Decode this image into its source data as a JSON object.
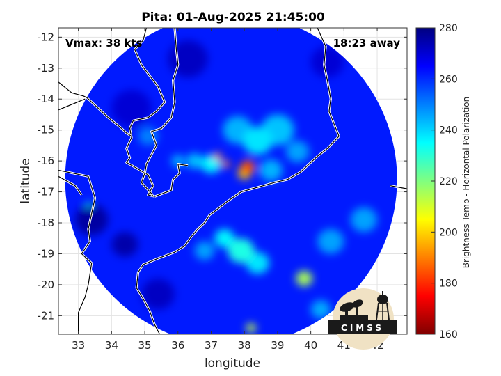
{
  "chart_data": {
    "type": "heatmap",
    "title": "Pita: 01-Aug-2025 21:45:00",
    "xlabel": "longitude",
    "ylabel": "latitude",
    "xlim": [
      32.4,
      42.9
    ],
    "ylim": [
      -21.6,
      -11.7
    ],
    "xticks": [
      33,
      34,
      35,
      36,
      37,
      38,
      39,
      40,
      41,
      42
    ],
    "yticks": [
      -12,
      -13,
      -14,
      -15,
      -16,
      -17,
      -18,
      -19,
      -20,
      -21
    ],
    "grid": true,
    "swath_center": [
      37.6,
      -16.6
    ],
    "swath_radius_deg": 5.0,
    "annotations": {
      "vmax": "Vmax: 38 kts",
      "away": "18:23 away"
    },
    "colorbar": {
      "label": "Brightness Temp - Horizontal Polarization",
      "min": 160,
      "max": 280,
      "ticks": [
        160,
        180,
        200,
        220,
        240,
        260,
        280
      ],
      "colormap": "jet"
    },
    "background_tb": 262,
    "features": [
      {
        "lon": 38.1,
        "lat": -16.2,
        "tb": 185,
        "spread": 0.22
      },
      {
        "lon": 38.0,
        "lat": -16.4,
        "tb": 198,
        "spread": 0.2
      },
      {
        "lon": 37.2,
        "lat": -15.85,
        "tb": 190,
        "spread": 0.12
      },
      {
        "lon": 37.45,
        "lat": -16.1,
        "tb": 188,
        "spread": 0.12
      },
      {
        "lon": 38.4,
        "lat": -15.35,
        "tb": 238,
        "spread": 0.45
      },
      {
        "lon": 39.0,
        "lat": -15.0,
        "tb": 242,
        "spread": 0.5
      },
      {
        "lon": 37.8,
        "lat": -15.0,
        "tb": 244,
        "spread": 0.45
      },
      {
        "lon": 37.0,
        "lat": -16.1,
        "tb": 236,
        "spread": 0.3
      },
      {
        "lon": 36.5,
        "lat": -16.0,
        "tb": 242,
        "spread": 0.25
      },
      {
        "lon": 36.0,
        "lat": -16.0,
        "tb": 244,
        "spread": 0.2
      },
      {
        "lon": 38.8,
        "lat": -16.3,
        "tb": 244,
        "spread": 0.35
      },
      {
        "lon": 39.6,
        "lat": -15.7,
        "tb": 246,
        "spread": 0.35
      },
      {
        "lon": 37.9,
        "lat": -18.9,
        "tb": 232,
        "spread": 0.4
      },
      {
        "lon": 37.4,
        "lat": -18.5,
        "tb": 236,
        "spread": 0.3
      },
      {
        "lon": 38.4,
        "lat": -19.3,
        "tb": 238,
        "spread": 0.35
      },
      {
        "lon": 39.8,
        "lat": -19.8,
        "tb": 215,
        "spread": 0.25
      },
      {
        "lon": 38.2,
        "lat": -21.4,
        "tb": 212,
        "spread": 0.15
      },
      {
        "lon": 40.6,
        "lat": -18.6,
        "tb": 246,
        "spread": 0.4
      },
      {
        "lon": 41.6,
        "lat": -17.9,
        "tb": 246,
        "spread": 0.4
      },
      {
        "lon": 40.3,
        "lat": -20.8,
        "tb": 245,
        "spread": 0.3
      },
      {
        "lon": 36.8,
        "lat": -18.9,
        "tb": 246,
        "spread": 0.3
      },
      {
        "lon": 35.1,
        "lat": -15.2,
        "tb": 250,
        "spread": 0.3
      },
      {
        "lon": 33.4,
        "lat": -17.9,
        "tb": 276,
        "spread": 0.5
      },
      {
        "lon": 34.4,
        "lat": -18.7,
        "tb": 275,
        "spread": 0.4
      },
      {
        "lon": 35.4,
        "lat": -20.3,
        "tb": 272,
        "spread": 0.5
      },
      {
        "lon": 36.3,
        "lat": -12.7,
        "tb": 272,
        "spread": 0.6
      },
      {
        "lon": 34.6,
        "lat": -14.3,
        "tb": 270,
        "spread": 0.6
      },
      {
        "lon": 40.5,
        "lat": -12.8,
        "tb": 270,
        "spread": 0.5
      },
      {
        "lon": 33.3,
        "lat": -17.4,
        "tb": 234,
        "spread": 0.08
      }
    ],
    "coastlines": [
      [
        [
          35.05,
          -11.7
        ],
        [
          34.95,
          -12.1
        ],
        [
          34.7,
          -12.4
        ],
        [
          34.9,
          -12.9
        ],
        [
          35.4,
          -13.6
        ],
        [
          35.6,
          -14.1
        ],
        [
          35.35,
          -14.4
        ],
        [
          35.1,
          -14.6
        ],
        [
          34.65,
          -14.7
        ],
        [
          34.55,
          -14.95
        ],
        [
          34.6,
          -15.25
        ],
        [
          34.45,
          -15.6
        ],
        [
          34.55,
          -15.9
        ],
        [
          34.45,
          -16.05
        ],
        [
          34.7,
          -16.2
        ],
        [
          35.1,
          -16.45
        ],
        [
          35.25,
          -16.8
        ],
        [
          35.1,
          -17.1
        ],
        [
          35.3,
          -17.15
        ]
      ],
      [
        [
          35.9,
          -11.7
        ],
        [
          35.95,
          -12.4
        ],
        [
          36.0,
          -12.9
        ],
        [
          35.85,
          -13.4
        ],
        [
          35.9,
          -14.1
        ],
        [
          35.8,
          -14.6
        ],
        [
          35.5,
          -14.95
        ],
        [
          35.2,
          -15.05
        ],
        [
          35.35,
          -15.5
        ],
        [
          35.05,
          -16.1
        ],
        [
          35.0,
          -16.4
        ],
        [
          34.9,
          -16.7
        ],
        [
          35.2,
          -17.05
        ],
        [
          35.25,
          -17.15
        ]
      ],
      [
        [
          35.3,
          -17.15
        ],
        [
          35.8,
          -16.95
        ],
        [
          35.85,
          -16.6
        ],
        [
          36.05,
          -16.4
        ],
        [
          36.0,
          -16.1
        ],
        [
          36.3,
          -16.15
        ]
      ],
      [
        [
          32.4,
          -13.45
        ],
        [
          32.8,
          -13.8
        ],
        [
          33.15,
          -13.9
        ],
        [
          33.25,
          -13.95
        ],
        [
          33.9,
          -14.6
        ],
        [
          34.25,
          -14.9
        ],
        [
          34.45,
          -15.1
        ],
        [
          34.6,
          -15.2
        ]
      ],
      [
        [
          32.4,
          -14.35
        ],
        [
          33.2,
          -14.0
        ]
      ],
      [
        [
          32.4,
          -16.3
        ],
        [
          33.3,
          -16.5
        ],
        [
          33.5,
          -17.2
        ],
        [
          33.3,
          -18.2
        ],
        [
          33.35,
          -18.6
        ],
        [
          33.1,
          -19.0
        ],
        [
          33.4,
          -19.3
        ],
        [
          33.3,
          -20.0
        ],
        [
          33.2,
          -20.4
        ],
        [
          33.0,
          -20.9
        ],
        [
          33.0,
          -21.3
        ],
        [
          33.0,
          -21.6
        ]
      ],
      [
        [
          32.4,
          -16.5
        ],
        [
          32.9,
          -16.8
        ],
        [
          33.1,
          -17.1
        ]
      ],
      [
        [
          40.2,
          -11.7
        ],
        [
          40.45,
          -12.3
        ],
        [
          40.4,
          -12.9
        ],
        [
          40.5,
          -13.4
        ],
        [
          40.6,
          -14.0
        ],
        [
          40.55,
          -14.4
        ],
        [
          40.7,
          -14.8
        ],
        [
          40.85,
          -15.2
        ],
        [
          40.5,
          -15.6
        ],
        [
          40.2,
          -15.85
        ],
        [
          39.95,
          -16.1
        ],
        [
          39.7,
          -16.35
        ],
        [
          39.3,
          -16.6
        ],
        [
          38.9,
          -16.7
        ],
        [
          38.4,
          -16.85
        ],
        [
          37.9,
          -17.0
        ],
        [
          37.5,
          -17.3
        ],
        [
          37.2,
          -17.55
        ],
        [
          36.95,
          -17.75
        ],
        [
          36.8,
          -18.0
        ],
        [
          36.6,
          -18.2
        ],
        [
          36.4,
          -18.45
        ],
        [
          36.2,
          -18.75
        ],
        [
          35.9,
          -18.95
        ],
        [
          35.4,
          -19.15
        ],
        [
          34.95,
          -19.35
        ],
        [
          34.8,
          -19.6
        ],
        [
          34.75,
          -20.1
        ],
        [
          34.95,
          -20.45
        ],
        [
          35.15,
          -20.85
        ],
        [
          35.3,
          -21.3
        ],
        [
          35.45,
          -21.6
        ]
      ],
      [
        [
          42.9,
          -16.9
        ],
        [
          42.4,
          -16.8
        ]
      ]
    ]
  },
  "logo": {
    "text": "CIMSS"
  }
}
